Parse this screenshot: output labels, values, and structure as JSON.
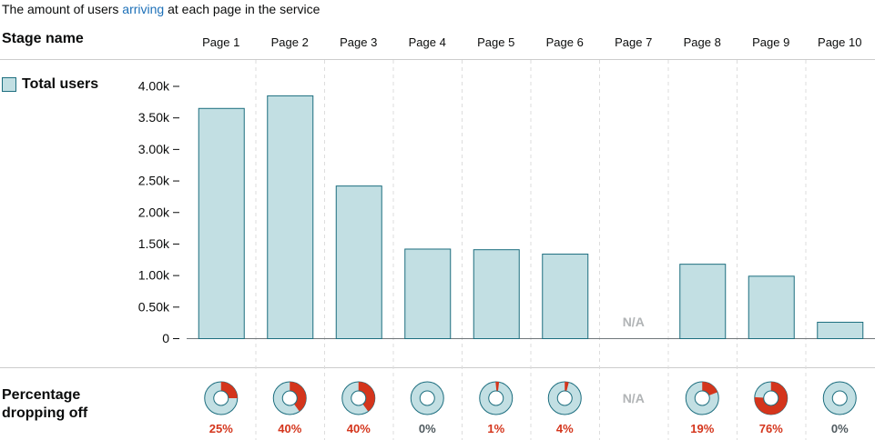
{
  "caption": {
    "before": "The amount of users ",
    "highlight": "arriving",
    "after": " at each page in the service"
  },
  "stage_header": "Stage name",
  "legend": {
    "label": "Total users"
  },
  "dropoff_title": {
    "line1": "Percentage",
    "line2": "dropping off"
  },
  "colors": {
    "bar_fill": "#c2dfe3",
    "bar_stroke": "#1d6e7f",
    "dropoff": "#d4351c",
    "na_text": "#b1b4b6",
    "link": "#1d70b8",
    "grid": "#cccccc"
  },
  "chart_data": {
    "type": "bar",
    "categories": [
      "Page 1",
      "Page 2",
      "Page 3",
      "Page 4",
      "Page 5",
      "Page 6",
      "Page 7",
      "Page 8",
      "Page 9",
      "Page 10"
    ],
    "series": [
      {
        "name": "Total users",
        "values": [
          3650,
          3850,
          2420,
          1420,
          1410,
          1340,
          null,
          1180,
          990,
          260
        ]
      }
    ],
    "ylim": [
      0,
      4000
    ],
    "yticks": [
      0,
      500,
      1000,
      1500,
      2000,
      2500,
      3000,
      3500,
      4000
    ],
    "ytick_labels": [
      "0",
      "0.50k",
      "1.00k",
      "1.50k",
      "2.00k",
      "2.50k",
      "3.00k",
      "3.50k",
      "4.00k"
    ],
    "na_label": "N/A",
    "dropoff_percent": [
      25,
      40,
      40,
      0,
      1,
      4,
      null,
      19,
      76,
      0
    ],
    "dropoff_labels": [
      "25%",
      "40%",
      "40%",
      "0%",
      "1%",
      "4%",
      "N/A",
      "19%",
      "76%",
      "0%"
    ]
  }
}
